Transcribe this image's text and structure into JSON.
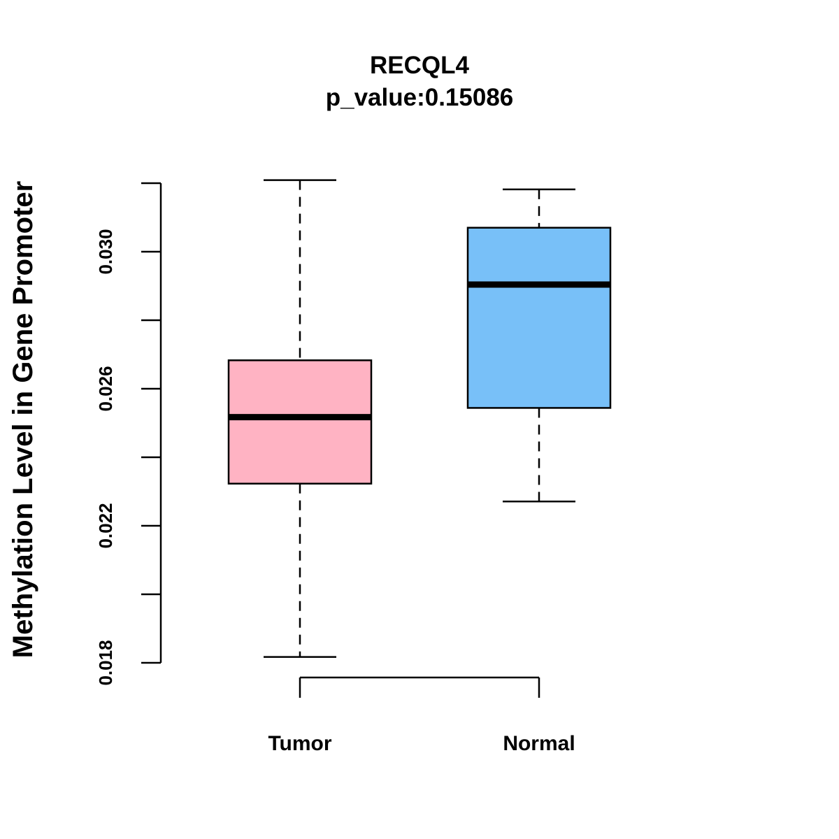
{
  "chart_data": {
    "type": "boxplot",
    "title": "RECQL4",
    "subtitle": "p_value:0.15086",
    "xlabel": "",
    "ylabel": "Methylation Level in Gene Promoter",
    "categories": [
      "Tumor",
      "Normal"
    ],
    "ylim": [
      0.018,
      0.032
    ],
    "yticks": [
      0.018,
      0.02,
      0.022,
      0.024,
      0.026,
      0.028,
      0.03,
      0.032
    ],
    "ytick_labels": [
      "0.018",
      "",
      "0.022",
      "",
      "0.026",
      "",
      "0.030",
      ""
    ],
    "series": [
      {
        "name": "Tumor",
        "min": 0.01817,
        "q1": 0.02323,
        "median": 0.02517,
        "q3": 0.02683,
        "max": 0.03209,
        "color": "#FFB3C3"
      },
      {
        "name": "Normal",
        "min": 0.02271,
        "q1": 0.02544,
        "median": 0.02904,
        "q3": 0.0307,
        "max": 0.03182,
        "color": "#78C0F8"
      }
    ],
    "grid": false,
    "legend": "none"
  }
}
